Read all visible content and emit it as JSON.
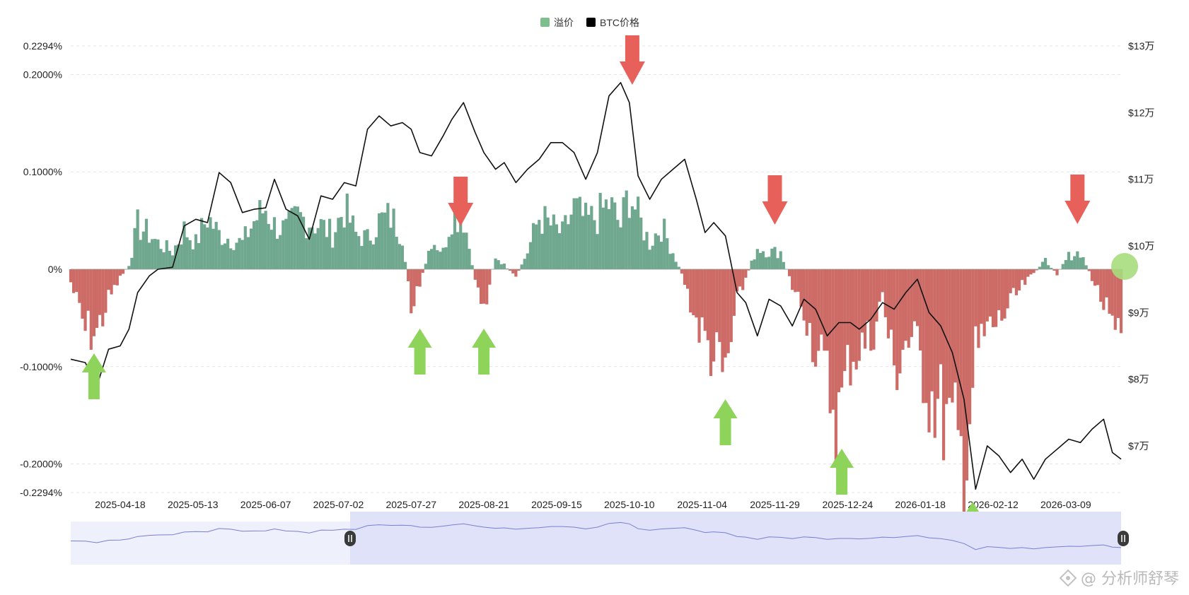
{
  "legend": [
    {
      "label": "溢价",
      "color": "#7fbf8e"
    },
    {
      "label": "BTC价格",
      "color": "#000000"
    }
  ],
  "watermark": "@ 分析师舒琴",
  "colors": {
    "premium_positive": "#6fa88f",
    "premium_negative": "#cd6b66",
    "price_line": "#111111",
    "arrow_up": "#8ed35a",
    "arrow_down": "#e8605a",
    "grid": "#e3e3e3",
    "navigator_bg": "#eef0fb",
    "navigator_selected": "#dfe2f8",
    "navigator_line": "#7b7fd0",
    "current_marker": "#a7dd7c"
  },
  "icons": [
    "arrow-up-icon",
    "arrow-down-icon",
    "pause-handle-icon",
    "watermark-logo-icon"
  ],
  "chart_data": {
    "type": "area",
    "left_axis": {
      "ticks": [
        "0.2294%",
        "0.2000%",
        "0.1000%",
        "0%",
        "-0.1000%",
        "-0.2000%",
        "-0.2294%"
      ],
      "tick_values": [
        0.2294,
        0.2,
        0.1,
        0,
        -0.1,
        -0.2,
        -0.2294
      ],
      "range": [
        -0.2294,
        0.2294
      ]
    },
    "right_axis": {
      "ticks": [
        "$13万",
        "$12万",
        "$11万",
        "$10万",
        "$9万",
        "$8万",
        "$7万"
      ],
      "tick_values": [
        130000,
        120000,
        110000,
        100000,
        90000,
        80000,
        70000
      ],
      "range": [
        63000,
        130000
      ]
    },
    "x_axis": {
      "ticks": [
        "2025-04-18",
        "2025-05-13",
        "2025-06-07",
        "2025-07-02",
        "2025-07-27",
        "2025-08-21",
        "2025-09-15",
        "2025-10-10",
        "2025-11-04",
        "2025-11-29",
        "2025-12-24",
        "2026-01-18",
        "2026-02-12",
        "2026-03-09"
      ],
      "range": [
        "2025-04-01",
        "2026-03-28"
      ]
    },
    "grid": true,
    "legend_position": "top-center",
    "premium_series": {
      "name": "溢价",
      "x": [
        "2025-04-01",
        "2025-04-06",
        "2025-04-10",
        "2025-04-14",
        "2025-04-18",
        "2025-04-21",
        "2025-04-24",
        "2025-04-28",
        "2025-05-01",
        "2025-05-06",
        "2025-05-10",
        "2025-05-14",
        "2025-05-18",
        "2025-05-22",
        "2025-05-26",
        "2025-05-30",
        "2025-06-03",
        "2025-06-07",
        "2025-06-10",
        "2025-06-14",
        "2025-06-18",
        "2025-06-22",
        "2025-06-26",
        "2025-06-30",
        "2025-07-04",
        "2025-07-08",
        "2025-07-12",
        "2025-07-16",
        "2025-07-20",
        "2025-07-24",
        "2025-07-27",
        "2025-07-30",
        "2025-08-03",
        "2025-08-07",
        "2025-08-10",
        "2025-08-14",
        "2025-08-18",
        "2025-08-21",
        "2025-08-25",
        "2025-08-28",
        "2025-09-01",
        "2025-09-05",
        "2025-09-09",
        "2025-09-13",
        "2025-09-17",
        "2025-09-21",
        "2025-09-25",
        "2025-09-29",
        "2025-10-03",
        "2025-10-07",
        "2025-10-10",
        "2025-10-13",
        "2025-10-17",
        "2025-10-21",
        "2025-10-25",
        "2025-10-29",
        "2025-11-02",
        "2025-11-05",
        "2025-11-08",
        "2025-11-12",
        "2025-11-16",
        "2025-11-19",
        "2025-11-23",
        "2025-11-27",
        "2025-12-01",
        "2025-12-05",
        "2025-12-09",
        "2025-12-13",
        "2025-12-17",
        "2025-12-21",
        "2025-12-25",
        "2025-12-28",
        "2026-01-01",
        "2026-01-05",
        "2026-01-09",
        "2026-01-13",
        "2026-01-17",
        "2026-01-21",
        "2026-01-25",
        "2026-01-29",
        "2026-02-02",
        "2026-02-06",
        "2026-02-10",
        "2026-02-14",
        "2026-02-18",
        "2026-02-22",
        "2026-02-26",
        "2026-03-02",
        "2026-03-06",
        "2026-03-10",
        "2026-03-14",
        "2026-03-18",
        "2026-03-22",
        "2026-03-25",
        "2026-03-28"
      ],
      "values": [
        -0.015,
        -0.07,
        -0.072,
        -0.035,
        -0.01,
        0.005,
        0.05,
        0.04,
        0.03,
        0.02,
        0.045,
        0.03,
        0.06,
        0.04,
        0.035,
        0.03,
        0.055,
        0.07,
        0.05,
        0.045,
        0.06,
        0.055,
        0.05,
        0.04,
        0.07,
        0.04,
        0.035,
        0.055,
        0.06,
        0.04,
        -0.04,
        -0.02,
        0.035,
        0.02,
        0.065,
        0.06,
        -0.01,
        -0.045,
        0.015,
        0.005,
        -0.01,
        0.02,
        0.06,
        0.05,
        0.04,
        0.07,
        0.055,
        0.06,
        0.075,
        0.05,
        0.09,
        0.06,
        0.03,
        0.05,
        0.02,
        -0.015,
        -0.06,
        -0.08,
        -0.1,
        -0.125,
        -0.04,
        -0.01,
        0.025,
        0.02,
        0.02,
        -0.02,
        -0.045,
        -0.09,
        -0.13,
        -0.17,
        -0.1,
        -0.09,
        -0.08,
        -0.03,
        -0.12,
        -0.08,
        -0.09,
        -0.14,
        -0.16,
        -0.19,
        -0.225,
        -0.1,
        -0.07,
        -0.06,
        -0.04,
        -0.02,
        -0.005,
        0.01,
        -0.005,
        0.015,
        0.02,
        -0.01,
        -0.04,
        -0.075,
        -0.09
      ]
    },
    "price_series": {
      "name": "BTC价格",
      "x": [
        "2025-04-01",
        "2025-04-06",
        "2025-04-10",
        "2025-04-14",
        "2025-04-18",
        "2025-04-21",
        "2025-04-24",
        "2025-04-28",
        "2025-05-01",
        "2025-05-06",
        "2025-05-10",
        "2025-05-14",
        "2025-05-18",
        "2025-05-22",
        "2025-05-26",
        "2025-05-30",
        "2025-06-03",
        "2025-06-07",
        "2025-06-10",
        "2025-06-14",
        "2025-06-18",
        "2025-06-22",
        "2025-06-26",
        "2025-06-30",
        "2025-07-04",
        "2025-07-08",
        "2025-07-12",
        "2025-07-16",
        "2025-07-20",
        "2025-07-24",
        "2025-07-27",
        "2025-07-30",
        "2025-08-03",
        "2025-08-07",
        "2025-08-10",
        "2025-08-14",
        "2025-08-18",
        "2025-08-21",
        "2025-08-25",
        "2025-08-28",
        "2025-09-01",
        "2025-09-05",
        "2025-09-09",
        "2025-09-13",
        "2025-09-17",
        "2025-09-21",
        "2025-09-25",
        "2025-09-29",
        "2025-10-03",
        "2025-10-07",
        "2025-10-10",
        "2025-10-13",
        "2025-10-17",
        "2025-10-21",
        "2025-10-25",
        "2025-10-29",
        "2025-11-02",
        "2025-11-05",
        "2025-11-08",
        "2025-11-12",
        "2025-11-16",
        "2025-11-19",
        "2025-11-23",
        "2025-11-27",
        "2025-12-01",
        "2025-12-05",
        "2025-12-09",
        "2025-12-13",
        "2025-12-17",
        "2025-12-21",
        "2025-12-25",
        "2025-12-28",
        "2026-01-01",
        "2026-01-05",
        "2026-01-09",
        "2026-01-13",
        "2026-01-17",
        "2026-01-21",
        "2026-01-25",
        "2026-01-29",
        "2026-02-02",
        "2026-02-06",
        "2026-02-10",
        "2026-02-14",
        "2026-02-18",
        "2026-02-22",
        "2026-02-26",
        "2026-03-02",
        "2026-03-06",
        "2026-03-10",
        "2026-03-14",
        "2026-03-18",
        "2026-03-22",
        "2026-03-25",
        "2026-03-28"
      ],
      "values": [
        83000,
        82500,
        79000,
        84500,
        85000,
        87500,
        93000,
        95500,
        96500,
        96800,
        103000,
        104000,
        103500,
        111000,
        109500,
        105000,
        105500,
        105700,
        110000,
        105500,
        104500,
        101000,
        107500,
        107000,
        109500,
        109000,
        117500,
        119500,
        118000,
        118500,
        117500,
        114000,
        113500,
        116500,
        119000,
        121500,
        117000,
        114000,
        111500,
        112500,
        109500,
        111500,
        113000,
        115500,
        115500,
        114000,
        110000,
        114000,
        122500,
        124500,
        121500,
        110500,
        107000,
        110000,
        111500,
        113000,
        107000,
        102000,
        103500,
        101500,
        93000,
        91500,
        86500,
        92000,
        91000,
        88000,
        92000,
        90500,
        86500,
        88500,
        88500,
        87500,
        89000,
        91500,
        90500,
        93000,
        95000,
        90000,
        88000,
        84000,
        77000,
        63500,
        70000,
        68500,
        66000,
        68000,
        65000,
        68000,
        69500,
        71000,
        70500,
        72500,
        74000,
        69000,
        68000
      ]
    },
    "annotations": {
      "up_arrows": [
        "2025-04-09",
        "2025-07-30",
        "2025-08-21",
        "2025-11-12",
        "2025-12-22",
        "2026-02-05"
      ],
      "down_arrows": [
        "2025-08-13",
        "2025-10-11",
        "2025-11-29",
        "2026-03-13"
      ],
      "current_marker": "2026-03-28"
    }
  }
}
